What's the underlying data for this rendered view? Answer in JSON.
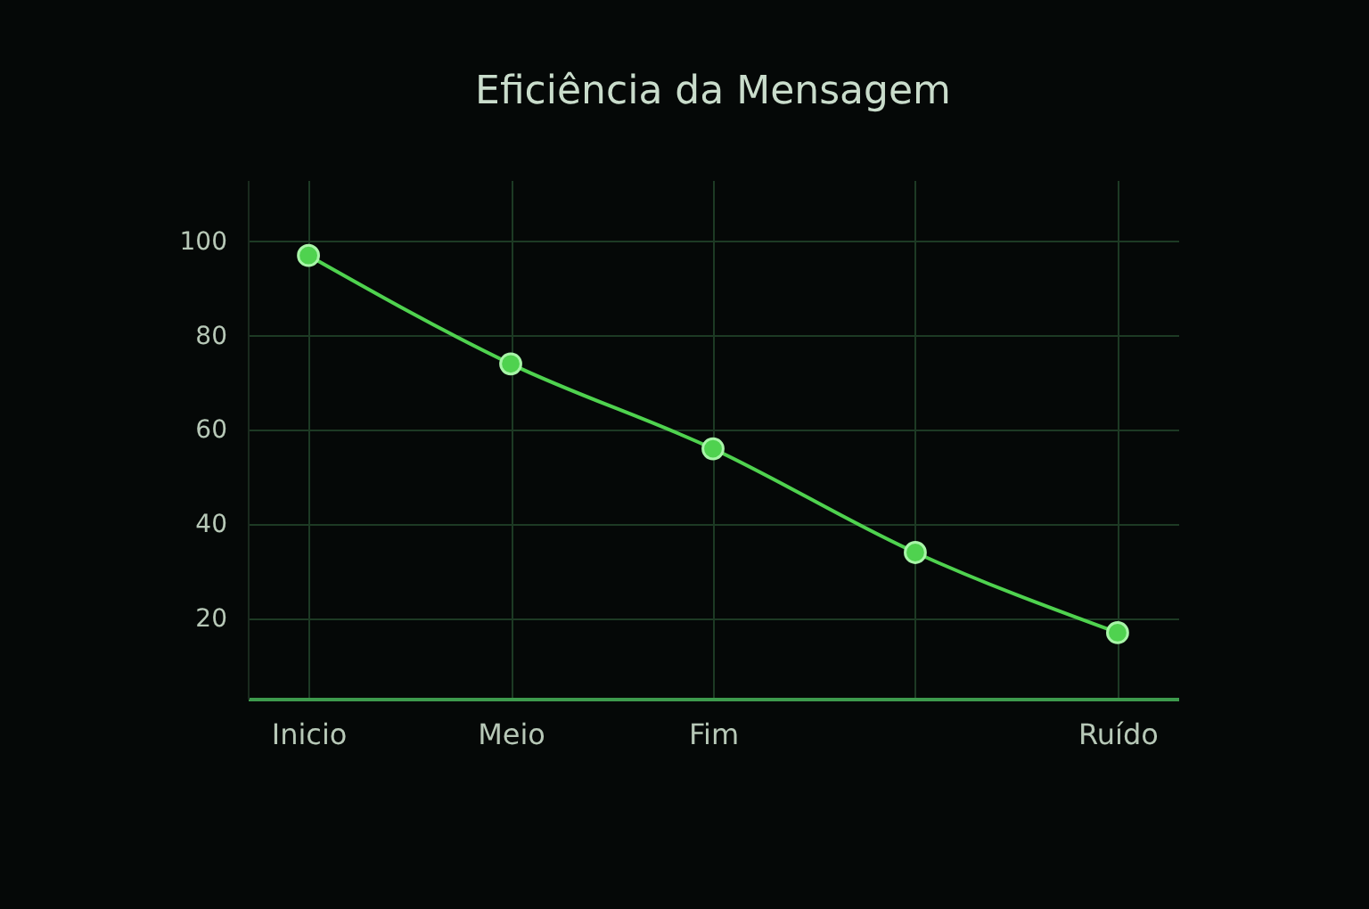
{
  "chart_data": {
    "type": "line",
    "title": "Eficiência da Mensagem",
    "categories": [
      "Inicio",
      "Meio",
      "Fim",
      null,
      "Ruído"
    ],
    "series": [
      {
        "color": "#4fd24f",
        "values": [
          97,
          74,
          56,
          34,
          17
        ]
      }
    ],
    "ylim": [
      3,
      113
    ],
    "yticks": [
      20,
      40,
      60,
      80,
      100
    ],
    "grid": true,
    "marker": "circle",
    "line_style": "solid"
  }
}
